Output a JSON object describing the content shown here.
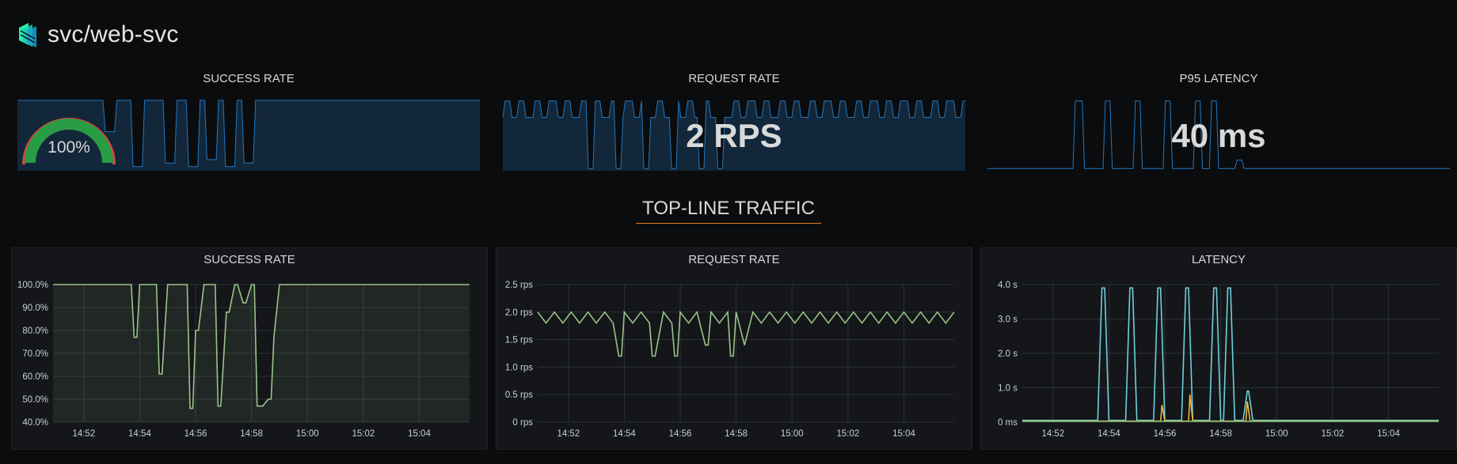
{
  "header": {
    "title": "svc/web-svc",
    "logo_icon": "linkerd-logo-icon"
  },
  "stats": {
    "success_rate": {
      "title": "SUCCESS RATE",
      "value": "100%",
      "gauge_fraction": 1.0
    },
    "request_rate": {
      "title": "REQUEST RATE",
      "value": "2 RPS"
    },
    "p95_latency": {
      "title": "P95 LATENCY",
      "value": "40 ms"
    }
  },
  "row": {
    "title": "TOP-LINE TRAFFIC"
  },
  "colors": {
    "sparkline": "#1f78c1",
    "sparkline_fill": "#13273a",
    "success_series": "#9ac48a",
    "latency_p50": "#7eb26d",
    "latency_p95": "#eab839",
    "latency_p99": "#6ed0e0",
    "gauge_green": "#299c46",
    "gauge_red": "#d44a3a",
    "underline": "#eb7b18"
  },
  "chart_data": [
    {
      "name": "success-rate",
      "type": "line",
      "title": "SUCCESS RATE",
      "x_ticks": [
        "14:52",
        "14:54",
        "14:56",
        "14:58",
        "15:00",
        "15:02",
        "15:04"
      ],
      "y_ticks": [
        "40.0%",
        "50.0%",
        "60.0%",
        "70.0%",
        "80.0%",
        "90.0%",
        "100.0%"
      ],
      "ylim": [
        40,
        100
      ],
      "xlim_minutes": [
        50.9,
        65.8
      ],
      "fill_area": true,
      "series": [
        {
          "x": [
            50.9,
            53.7,
            53.8,
            53.9,
            54.0,
            54.2,
            54.6,
            54.7,
            54.8,
            55.0,
            55.7,
            55.8,
            55.9,
            56.0,
            56.1,
            56.3,
            56.5,
            56.7,
            56.8,
            56.9,
            57.1,
            57.2,
            57.4,
            57.5,
            57.7,
            57.8,
            58.0,
            58.1,
            58.2,
            58.4,
            58.6,
            58.7,
            58.8,
            59.0,
            59.1,
            65.8
          ],
          "y": [
            100,
            100,
            77,
            77,
            100,
            100,
            100,
            61,
            61,
            100,
            100,
            46,
            46,
            80,
            80,
            100,
            100,
            100,
            47,
            47,
            88,
            88,
            100,
            100,
            92,
            92,
            100,
            100,
            47,
            47,
            50,
            50,
            77,
            100,
            100,
            100
          ]
        }
      ]
    },
    {
      "name": "request-rate",
      "type": "line",
      "title": "REQUEST RATE",
      "x_ticks": [
        "14:52",
        "14:54",
        "14:56",
        "14:58",
        "15:00",
        "15:02",
        "15:04"
      ],
      "y_ticks": [
        "0 rps",
        "0.5 rps",
        "1.0 rps",
        "1.5 rps",
        "2.0 rps",
        "2.5 rps"
      ],
      "ylim": [
        0,
        2.5
      ],
      "xlim_minutes": [
        50.9,
        65.8
      ],
      "series": [
        {
          "x": [
            50.9,
            51.2,
            51.5,
            51.8,
            52.1,
            52.4,
            52.7,
            53.0,
            53.3,
            53.6,
            53.8,
            53.9,
            54.0,
            54.3,
            54.6,
            54.9,
            55.0,
            55.1,
            55.4,
            55.7,
            55.8,
            55.9,
            56.0,
            56.3,
            56.6,
            56.9,
            57.0,
            57.1,
            57.4,
            57.7,
            57.8,
            57.9,
            58.0,
            58.3,
            58.6,
            58.9,
            59.2,
            59.5,
            59.8,
            60.1,
            60.4,
            60.7,
            61.0,
            61.3,
            61.6,
            61.9,
            62.2,
            62.5,
            62.8,
            63.1,
            63.4,
            63.7,
            64.0,
            64.3,
            64.6,
            64.9,
            65.2,
            65.5,
            65.8
          ],
          "y": [
            2.0,
            1.8,
            2.0,
            1.8,
            2.0,
            1.8,
            2.0,
            1.8,
            2.0,
            1.8,
            1.2,
            1.2,
            2.0,
            1.8,
            2.0,
            1.8,
            1.2,
            1.2,
            2.0,
            1.8,
            1.2,
            1.2,
            2.0,
            1.8,
            2.0,
            1.4,
            1.4,
            2.0,
            1.8,
            2.0,
            1.2,
            1.2,
            2.0,
            1.4,
            2.0,
            1.8,
            2.0,
            1.8,
            2.0,
            1.8,
            2.0,
            1.8,
            2.0,
            1.8,
            2.0,
            1.8,
            2.0,
            1.8,
            2.0,
            1.8,
            2.0,
            1.8,
            2.0,
            1.8,
            2.0,
            1.8,
            2.0,
            1.8,
            2.0
          ]
        }
      ]
    },
    {
      "name": "latency",
      "type": "line",
      "title": "LATENCY",
      "x_ticks": [
        "14:52",
        "14:54",
        "14:56",
        "14:58",
        "15:00",
        "15:02",
        "15:04"
      ],
      "y_ticks": [
        "0 ms",
        "1.0 s",
        "2.0 s",
        "3.0 s",
        "4.0 s"
      ],
      "ylim": [
        0,
        4.0
      ],
      "xlim_minutes": [
        50.9,
        65.8
      ],
      "series": [
        {
          "color_key": "latency_p99",
          "x": [
            50.9,
            53.6,
            53.75,
            53.85,
            54.0,
            54.6,
            54.75,
            54.85,
            55.0,
            55.6,
            55.75,
            55.85,
            56.0,
            56.6,
            56.75,
            56.85,
            57.0,
            57.6,
            57.75,
            57.85,
            58.0,
            58.1,
            58.25,
            58.35,
            58.5,
            58.8,
            58.95,
            59.0,
            59.15,
            65.8
          ],
          "y": [
            0.05,
            0.05,
            3.9,
            3.9,
            0.05,
            0.05,
            3.9,
            3.9,
            0.05,
            0.05,
            3.9,
            3.9,
            0.05,
            0.05,
            3.9,
            3.9,
            0.05,
            0.05,
            3.9,
            3.9,
            0.05,
            0.05,
            3.9,
            3.9,
            0.05,
            0.05,
            0.9,
            0.9,
            0.05,
            0.05
          ]
        },
        {
          "color_key": "latency_p95",
          "x": [
            50.9,
            55.85,
            55.9,
            56.0,
            56.85,
            56.9,
            57.0,
            58.9,
            58.95,
            59.05,
            65.8
          ],
          "y": [
            0.03,
            0.03,
            0.5,
            0.03,
            0.03,
            0.8,
            0.03,
            0.03,
            0.6,
            0.03,
            0.03
          ]
        },
        {
          "color_key": "latency_p50",
          "x": [
            50.9,
            65.8
          ],
          "y": [
            0.02,
            0.02
          ]
        }
      ]
    }
  ]
}
